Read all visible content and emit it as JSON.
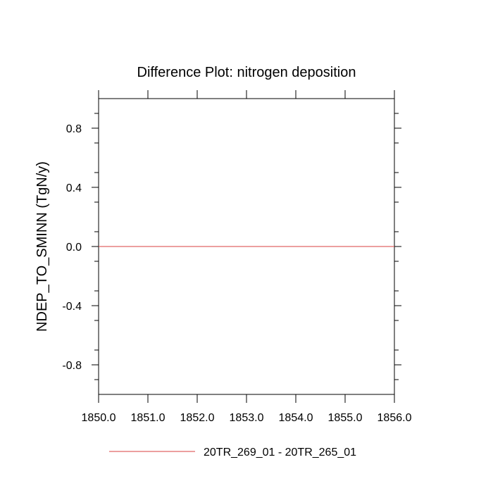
{
  "chart_data": {
    "type": "line",
    "title": "Difference Plot: nitrogen deposition",
    "xlabel": "",
    "ylabel": "NDEP_TO_SMINN  (TgN/y)",
    "xlim": [
      1850.0,
      1856.0
    ],
    "ylim": [
      -1.0,
      1.0
    ],
    "x_ticks": [
      1850.0,
      1851.0,
      1852.0,
      1853.0,
      1854.0,
      1855.0,
      1856.0
    ],
    "x_tick_labels": [
      "1850.0",
      "1851.0",
      "1852.0",
      "1853.0",
      "1854.0",
      "1855.0",
      "1856.0"
    ],
    "y_ticks": [
      0.8,
      0.4,
      0.0,
      -0.4,
      -0.8
    ],
    "y_tick_labels": [
      "0.8",
      "0.4",
      "0.0",
      "-0.4",
      "-0.8"
    ],
    "grid": false,
    "legend_position": "bottom",
    "series": [
      {
        "name": "20TR_269_01 - 20TR_265_01",
        "color": "#e06666",
        "x": [
          1850.0,
          1856.0
        ],
        "y": [
          0.0,
          0.0
        ]
      }
    ]
  }
}
